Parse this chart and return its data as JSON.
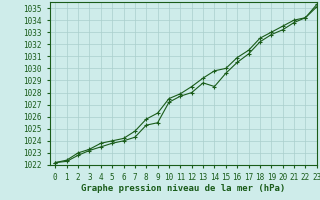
{
  "xlabel": "Graphe pression niveau de la mer (hPa)",
  "ylim": [
    1022,
    1035.5
  ],
  "xlim": [
    -0.5,
    23
  ],
  "yticks": [
    1022,
    1023,
    1024,
    1025,
    1026,
    1027,
    1028,
    1029,
    1030,
    1031,
    1032,
    1033,
    1034,
    1035
  ],
  "xticks": [
    0,
    1,
    2,
    3,
    4,
    5,
    6,
    7,
    8,
    9,
    10,
    11,
    12,
    13,
    14,
    15,
    16,
    17,
    18,
    19,
    20,
    21,
    22,
    23
  ],
  "bg_color": "#ceecea",
  "grid_color": "#aacfcc",
  "line_color": "#1a5c1a",
  "text_color": "#1a5c1a",
  "series1_x": [
    0,
    1,
    2,
    3,
    4,
    5,
    6,
    7,
    8,
    9,
    10,
    11,
    12,
    13,
    14,
    15,
    16,
    17,
    18,
    19,
    20,
    21,
    22,
    23
  ],
  "series1_y": [
    1022.2,
    1022.3,
    1022.8,
    1023.2,
    1023.5,
    1023.8,
    1024.0,
    1024.3,
    1025.3,
    1025.5,
    1027.2,
    1027.7,
    1028.0,
    1028.8,
    1028.5,
    1029.6,
    1030.5,
    1031.2,
    1032.2,
    1032.8,
    1033.2,
    1033.8,
    1034.2,
    1035.1
  ],
  "series2_x": [
    0,
    1,
    2,
    3,
    4,
    5,
    6,
    7,
    8,
    9,
    10,
    11,
    12,
    13,
    14,
    15,
    16,
    17,
    18,
    19,
    20,
    21,
    22,
    23
  ],
  "series2_y": [
    1022.2,
    1022.4,
    1023.0,
    1023.3,
    1023.8,
    1024.0,
    1024.2,
    1024.8,
    1025.8,
    1026.3,
    1027.5,
    1027.9,
    1028.5,
    1029.2,
    1029.8,
    1030.0,
    1030.9,
    1031.5,
    1032.5,
    1033.0,
    1033.5,
    1034.0,
    1034.2,
    1035.3
  ],
  "marker": "+",
  "linewidth": 0.8,
  "fontsize_ticks": 5.5,
  "fontsize_xlabel": 6.5
}
